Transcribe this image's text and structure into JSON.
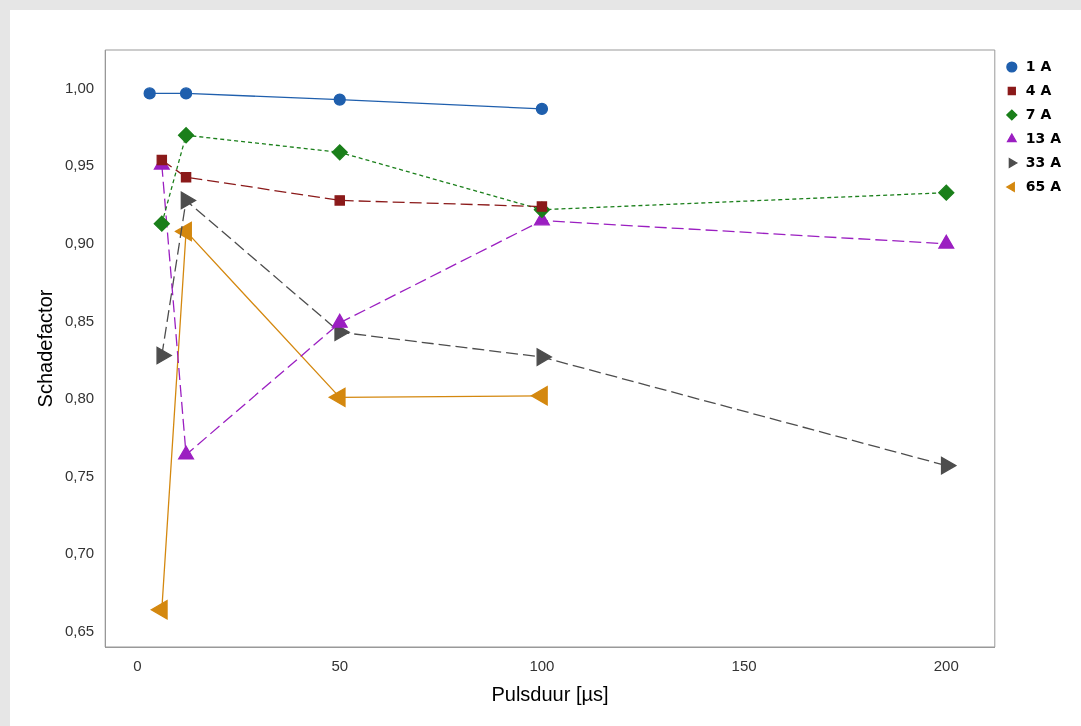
{
  "chart_data": {
    "type": "line",
    "xlabel": "Pulsduur [µs]",
    "ylabel": "Schadefactor",
    "xlim": [
      -8,
      212
    ],
    "xticks": [
      0,
      50,
      100,
      150,
      200
    ],
    "ylim": [
      0.64,
      1.025
    ],
    "yticks": [
      {
        "value": 0.65,
        "label": "0,65"
      },
      {
        "value": 0.7,
        "label": "0,70"
      },
      {
        "value": 0.75,
        "label": "0,75"
      },
      {
        "value": 0.8,
        "label": "0,80"
      },
      {
        "value": 0.85,
        "label": "0,85"
      },
      {
        "value": 0.9,
        "label": "0,90"
      },
      {
        "value": 0.95,
        "label": "0,95"
      },
      {
        "value": 1.0,
        "label": "1,00"
      }
    ],
    "grid": false,
    "legend": "right",
    "series": [
      {
        "name": "1 A",
        "color": "#1f5fad",
        "marker": "circle",
        "line_style": "solid",
        "x": [
          3,
          12,
          50,
          100
        ],
        "values": [
          0.997,
          0.997,
          0.993,
          0.987
        ]
      },
      {
        "name": "4 A",
        "color": "#8b1a1a",
        "marker": "square",
        "line_style": "dashed",
        "x": [
          6,
          12,
          50,
          100
        ],
        "values": [
          0.954,
          0.943,
          0.928,
          0.924
        ]
      },
      {
        "name": "7 A",
        "color": "#1a7f1a",
        "marker": "diamond",
        "line_style": "dotted",
        "x": [
          6,
          12,
          50,
          100,
          200
        ],
        "values": [
          0.913,
          0.97,
          0.959,
          0.922,
          0.933
        ]
      },
      {
        "name": "13 A",
        "color": "#9b1fc1",
        "marker": "triangle",
        "line_style": "dashed",
        "x": [
          6,
          12,
          50,
          100,
          200
        ],
        "values": [
          0.951,
          0.764,
          0.849,
          0.915,
          0.9
        ]
      },
      {
        "name": "33 A",
        "color": "#4d4d4d",
        "marker": "triangle-right",
        "line_style": "dashed",
        "x": [
          6,
          12,
          50,
          100,
          200
        ],
        "values": [
          0.828,
          0.928,
          0.843,
          0.827,
          0.757
        ]
      },
      {
        "name": "65 A",
        "color": "#d4880f",
        "marker": "triangle-left",
        "line_style": "solid",
        "x": [
          6,
          12,
          50,
          100
        ],
        "values": [
          0.664,
          0.908,
          0.801,
          0.802
        ]
      }
    ]
  }
}
